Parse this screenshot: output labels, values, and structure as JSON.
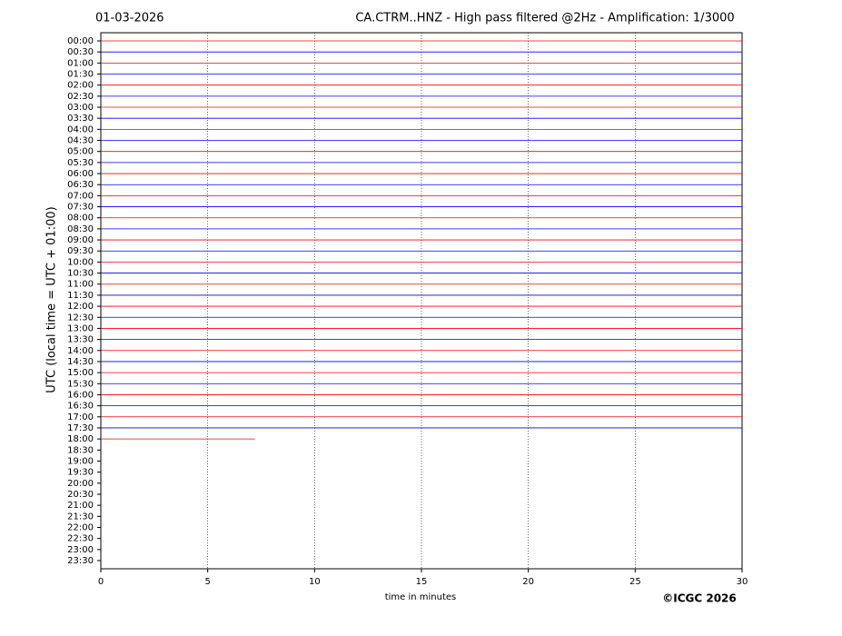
{
  "chart_data": {
    "type": "helicorder",
    "date": "01-03-2026",
    "title": "CA.CTRM..HNZ - High pass filtered @2Hz - Amplification: 1/3000",
    "y_label": "UTC (local time = UTC + 01:00)",
    "x_label": "time in minutes",
    "credit": "©ICGC 2026",
    "categories": [
      "00:00",
      "00:30",
      "01:00",
      "01:30",
      "02:00",
      "02:30",
      "03:00",
      "03:30",
      "04:00",
      "04:30",
      "05:00",
      "05:30",
      "06:00",
      "06:30",
      "07:00",
      "07:30",
      "08:00",
      "08:30",
      "09:00",
      "09:30",
      "10:00",
      "10:30",
      "11:00",
      "11:30",
      "12:00",
      "12:30",
      "13:00",
      "13:30",
      "14:00",
      "14:30",
      "15:00",
      "15:30",
      "16:00",
      "16:30",
      "17:00",
      "17:30",
      "18:00",
      "18:30",
      "19:00",
      "19:30",
      "20:00",
      "20:30",
      "21:00",
      "21:30",
      "22:00",
      "22:30",
      "23:00",
      "23:30"
    ],
    "values": [
      30,
      30,
      30,
      30,
      30,
      30,
      30,
      30,
      30,
      30,
      30,
      30,
      30,
      30,
      30,
      30,
      30,
      30,
      30,
      30,
      30,
      30,
      30,
      30,
      30,
      30,
      30,
      30,
      30,
      30,
      30,
      30,
      30,
      30,
      30,
      30,
      7.2,
      null,
      null,
      null,
      null,
      null,
      null,
      null,
      null,
      null,
      null,
      null
    ],
    "colors": [
      "#ff0000",
      "#0000ff"
    ],
    "xlim": [
      0,
      30
    ],
    "xticks": [
      0,
      5,
      10,
      15,
      20,
      25,
      30
    ],
    "grid": true
  }
}
